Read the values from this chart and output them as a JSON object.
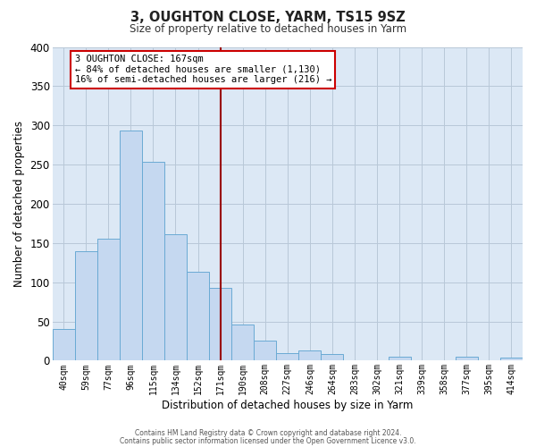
{
  "title": "3, OUGHTON CLOSE, YARM, TS15 9SZ",
  "subtitle": "Size of property relative to detached houses in Yarm",
  "xlabel": "Distribution of detached houses by size in Yarm",
  "ylabel": "Number of detached properties",
  "bin_labels": [
    "40sqm",
    "59sqm",
    "77sqm",
    "96sqm",
    "115sqm",
    "134sqm",
    "152sqm",
    "171sqm",
    "190sqm",
    "208sqm",
    "227sqm",
    "246sqm",
    "264sqm",
    "283sqm",
    "302sqm",
    "321sqm",
    "339sqm",
    "358sqm",
    "377sqm",
    "395sqm",
    "414sqm"
  ],
  "bar_heights": [
    40,
    140,
    155,
    293,
    253,
    161,
    113,
    93,
    46,
    25,
    10,
    13,
    8,
    0,
    0,
    5,
    0,
    0,
    5,
    0,
    4
  ],
  "bar_color": "#c5d8f0",
  "bar_edge_color": "#6aaad4",
  "vline_x_index": 7,
  "vline_color": "#990000",
  "annotation_title": "3 OUGHTON CLOSE: 167sqm",
  "annotation_line1": "← 84% of detached houses are smaller (1,130)",
  "annotation_line2": "16% of semi-detached houses are larger (216) →",
  "annotation_box_facecolor": "#ffffff",
  "annotation_box_edgecolor": "#cc0000",
  "ylim": [
    0,
    400
  ],
  "yticks": [
    0,
    50,
    100,
    150,
    200,
    250,
    300,
    350,
    400
  ],
  "ax_facecolor": "#dce8f5",
  "background_color": "#ffffff",
  "grid_color": "#b8c8d8",
  "footer_line1": "Contains HM Land Registry data © Crown copyright and database right 2024.",
  "footer_line2": "Contains public sector information licensed under the Open Government Licence v3.0."
}
